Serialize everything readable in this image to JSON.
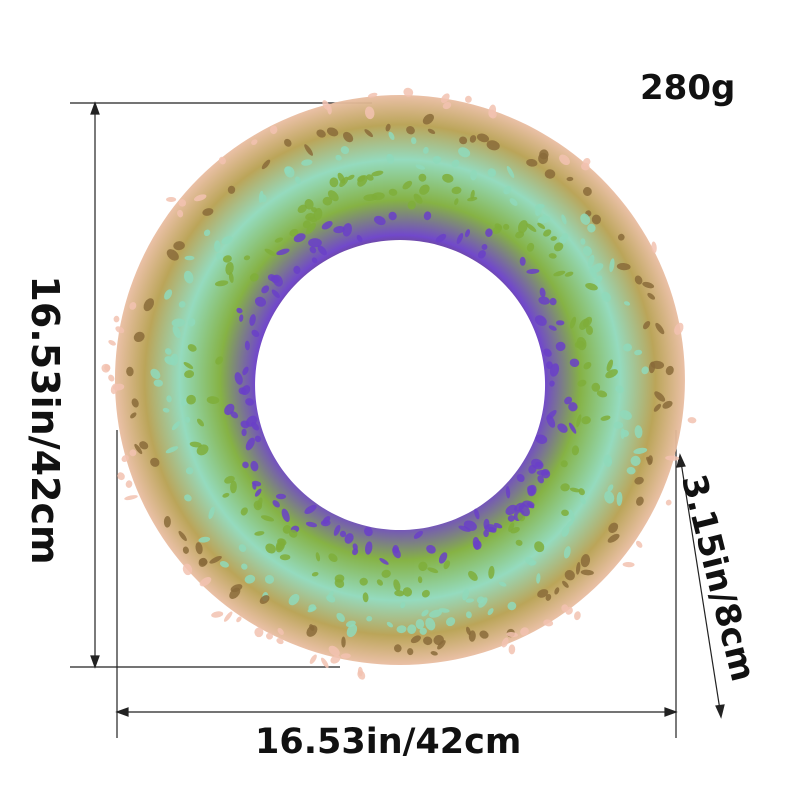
{
  "product": {
    "weight": "280g",
    "width": "16.53in/42cm",
    "height": "16.53in/42cm",
    "depth": "3.15in/8cm"
  },
  "colors": {
    "lavender": "#6a3fc8",
    "mint": "#8fd9bb",
    "leaf_green": "#7fae3a",
    "blush_pink": "#f2c2b0",
    "twig_brown": "#8a6b3a"
  }
}
